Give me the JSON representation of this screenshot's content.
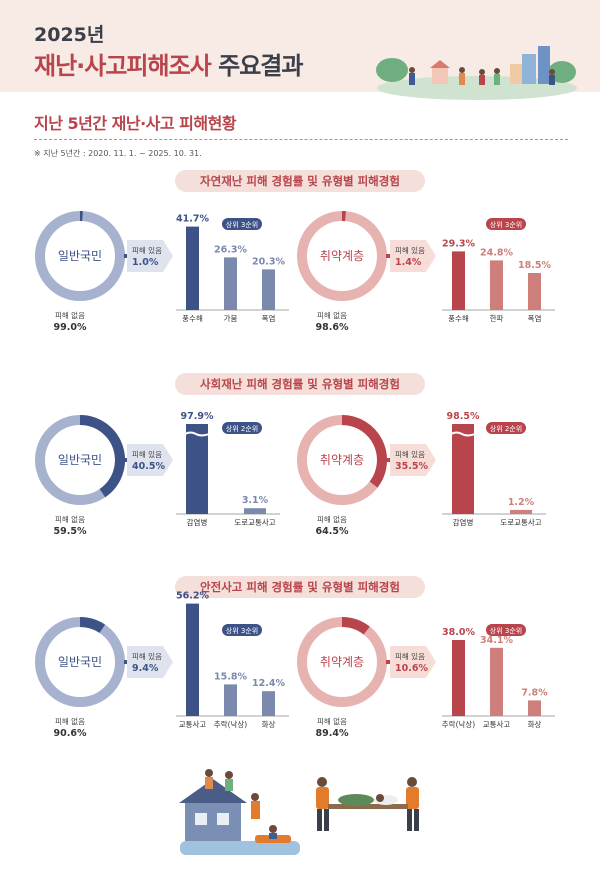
{
  "header": {
    "year_title": "2025년",
    "main_title_accent": "재난·사고피해조사",
    "main_title_rest": "주요결과",
    "section_title": "지난 5년간 재난·사고 피해현황",
    "note": "※ 지난 5년간 : 2020. 11. 1. ~ 2025. 10. 31."
  },
  "labels": {
    "general": "일반국민",
    "vulnerable": "취약계층",
    "damaged": "피해 있음",
    "not_damaged": "피해 없음"
  },
  "colors": {
    "general_main": "#3d5287",
    "general_light": "#a7b2cf",
    "vulnerable_main": "#b8454c",
    "vulnerable_light": "#e7b3b0",
    "accent": "#b8454c"
  },
  "chart_data": [
    {
      "type": "bar",
      "title": "자연재난 피해 경험률 및 유형별 피해경험",
      "groups": [
        {
          "group": "일반국민",
          "damaged": "1.0%",
          "not_damaged": "99.0%",
          "damaged_pct": 1.0,
          "badge": "상위 3순위",
          "categories": [
            "풍수해",
            "가뭄",
            "폭염"
          ],
          "values": [
            41.7,
            26.3,
            20.3
          ],
          "labels": [
            "41.7%",
            "26.3%",
            "20.3%"
          ]
        },
        {
          "group": "취약계층",
          "damaged": "1.4%",
          "not_damaged": "98.6%",
          "damaged_pct": 1.4,
          "badge": "상위 3순위",
          "categories": [
            "풍수해",
            "한파",
            "폭염"
          ],
          "values": [
            29.3,
            24.8,
            18.5
          ],
          "labels": [
            "29.3%",
            "24.8%",
            "18.5%"
          ]
        }
      ]
    },
    {
      "type": "bar",
      "title": "사회재난 피해 경험률 및 유형별 피해경험",
      "groups": [
        {
          "group": "일반국민",
          "damaged": "40.5%",
          "not_damaged": "59.5%",
          "damaged_pct": 40.5,
          "badge": "상위 2순위",
          "categories": [
            "감염병",
            "도로교통사고"
          ],
          "values": [
            97.9,
            3.1
          ],
          "labels": [
            "97.9%",
            "3.1%"
          ]
        },
        {
          "group": "취약계층",
          "damaged": "35.5%",
          "not_damaged": "64.5%",
          "damaged_pct": 35.5,
          "badge": "상위 2순위",
          "categories": [
            "감염병",
            "도로교통사고"
          ],
          "values": [
            98.5,
            1.2
          ],
          "labels": [
            "98.5%",
            "1.2%"
          ]
        }
      ]
    },
    {
      "type": "bar",
      "title": "안전사고 피해 경험률 및 유형별 피해경험",
      "groups": [
        {
          "group": "일반국민",
          "damaged": "9.4%",
          "not_damaged": "90.6%",
          "damaged_pct": 9.4,
          "badge": "상위 3순위",
          "categories": [
            "교통사고",
            "추락(낙상)",
            "화상"
          ],
          "values": [
            56.2,
            15.8,
            12.4
          ],
          "labels": [
            "56.2%",
            "15.8%",
            "12.4%"
          ]
        },
        {
          "group": "취약계층",
          "damaged": "10.6%",
          "not_damaged": "89.4%",
          "damaged_pct": 10.6,
          "badge": "상위 3순위",
          "categories": [
            "추락(낙상)",
            "교통사고",
            "화상"
          ],
          "values": [
            38.0,
            34.1,
            7.8
          ],
          "labels": [
            "38.0%",
            "34.1%",
            "7.8%"
          ]
        }
      ]
    }
  ]
}
